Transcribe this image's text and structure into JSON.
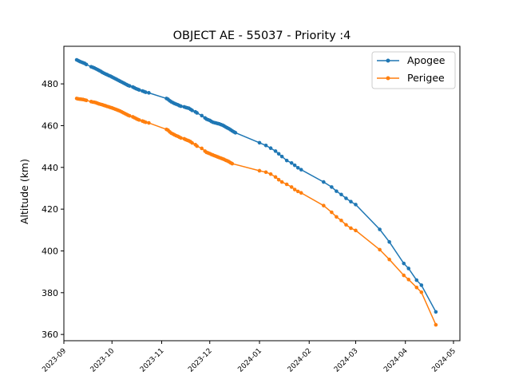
{
  "chart_data": {
    "type": "line",
    "title": "OBJECT AE - 55037 - Priority :4",
    "xlabel": "",
    "ylabel": "Altitude (km)",
    "ylim": [
      357,
      498
    ],
    "xlim": [
      "2023-09-01",
      "2024-05-05"
    ],
    "x_ticks": [
      "2023-09",
      "2023-10",
      "2023-11",
      "2023-12",
      "2024-01",
      "2024-02",
      "2024-03",
      "2024-04",
      "2024-05"
    ],
    "y_ticks": [
      360,
      380,
      400,
      420,
      440,
      460,
      480
    ],
    "legend_position": "top-right",
    "grid": false,
    "series": [
      {
        "name": "Apogee",
        "color": "#1f77b4",
        "points": [
          [
            "2023-09-09",
            491.5
          ],
          [
            "2023-09-10",
            491.1
          ],
          [
            "2023-09-11",
            490.7
          ],
          [
            "2023-09-12",
            490.4
          ],
          [
            "2023-09-13",
            490.1
          ],
          [
            "2023-09-14",
            489.8
          ],
          [
            "2023-09-15",
            489.3
          ],
          [
            "2023-09-18",
            488.2
          ],
          [
            "2023-09-19",
            487.9
          ],
          [
            "2023-09-20",
            487.6
          ],
          [
            "2023-09-21",
            487.2
          ],
          [
            "2023-09-22",
            486.8
          ],
          [
            "2023-09-23",
            486.4
          ],
          [
            "2023-09-24",
            486.0
          ],
          [
            "2023-09-25",
            485.5
          ],
          [
            "2023-09-26",
            485.1
          ],
          [
            "2023-09-27",
            484.7
          ],
          [
            "2023-09-28",
            484.4
          ],
          [
            "2023-09-29",
            484.0
          ],
          [
            "2023-09-30",
            483.7
          ],
          [
            "2023-10-01",
            483.3
          ],
          [
            "2023-10-02",
            482.9
          ],
          [
            "2023-10-03",
            482.5
          ],
          [
            "2023-10-04",
            482.1
          ],
          [
            "2023-10-05",
            481.7
          ],
          [
            "2023-10-06",
            481.3
          ],
          [
            "2023-10-07",
            480.9
          ],
          [
            "2023-10-08",
            480.5
          ],
          [
            "2023-10-09",
            480.1
          ],
          [
            "2023-10-10",
            479.7
          ],
          [
            "2023-10-11",
            479.3
          ],
          [
            "2023-10-12",
            479.0
          ],
          [
            "2023-10-14",
            478.5
          ],
          [
            "2023-10-15",
            478.1
          ],
          [
            "2023-10-16",
            477.7
          ],
          [
            "2023-10-17",
            477.4
          ],
          [
            "2023-10-18",
            477.1
          ],
          [
            "2023-10-20",
            476.6
          ],
          [
            "2023-10-21",
            476.3
          ],
          [
            "2023-10-22",
            476.0
          ],
          [
            "2023-10-24",
            475.7
          ],
          [
            "2023-11-04",
            473.0
          ],
          [
            "2023-11-05",
            472.6
          ],
          [
            "2023-11-06",
            471.9
          ],
          [
            "2023-11-07",
            471.4
          ],
          [
            "2023-11-08",
            471.0
          ],
          [
            "2023-11-09",
            470.6
          ],
          [
            "2023-11-10",
            470.3
          ],
          [
            "2023-11-11",
            470.0
          ],
          [
            "2023-11-12",
            469.6
          ],
          [
            "2023-11-13",
            469.3
          ],
          [
            "2023-11-15",
            469.0
          ],
          [
            "2023-11-16",
            468.7
          ],
          [
            "2023-11-17",
            468.5
          ],
          [
            "2023-11-18",
            468.3
          ],
          [
            "2023-11-19",
            467.8
          ],
          [
            "2023-11-20",
            467.3
          ],
          [
            "2023-11-22",
            466.6
          ],
          [
            "2023-11-23",
            466.1
          ],
          [
            "2023-11-26",
            464.8
          ],
          [
            "2023-11-28",
            463.7
          ],
          [
            "2023-11-29",
            463.1
          ],
          [
            "2023-11-30",
            462.8
          ],
          [
            "2023-12-01",
            462.5
          ],
          [
            "2023-12-02",
            462.0
          ],
          [
            "2023-12-03",
            461.6
          ],
          [
            "2023-12-04",
            461.4
          ],
          [
            "2023-12-05",
            461.2
          ],
          [
            "2023-12-06",
            461.0
          ],
          [
            "2023-12-07",
            460.8
          ],
          [
            "2023-12-08",
            460.5
          ],
          [
            "2023-12-09",
            460.2
          ],
          [
            "2023-12-10",
            459.8
          ],
          [
            "2023-12-11",
            459.3
          ],
          [
            "2023-12-12",
            458.9
          ],
          [
            "2023-12-13",
            458.5
          ],
          [
            "2023-12-14",
            458.0
          ],
          [
            "2023-12-15",
            457.5
          ],
          [
            "2023-12-16",
            457.0
          ],
          [
            "2023-12-17",
            456.6
          ],
          [
            "2024-01-01",
            451.8
          ],
          [
            "2024-01-05",
            450.5
          ],
          [
            "2024-01-08",
            449.2
          ],
          [
            "2024-01-11",
            447.8
          ],
          [
            "2024-01-13",
            446.5
          ],
          [
            "2024-01-15",
            445.2
          ],
          [
            "2024-01-18",
            443.3
          ],
          [
            "2024-01-21",
            442.1
          ],
          [
            "2024-01-23",
            441.0
          ],
          [
            "2024-01-25",
            439.8
          ],
          [
            "2024-01-27",
            438.9
          ],
          [
            "2024-02-10",
            433.0
          ],
          [
            "2024-02-15",
            430.6
          ],
          [
            "2024-02-18",
            428.6
          ],
          [
            "2024-02-21",
            427.0
          ],
          [
            "2024-02-24",
            425.2
          ],
          [
            "2024-02-27",
            423.6
          ],
          [
            "2024-03-01",
            422.2
          ],
          [
            "2024-03-16",
            410.3
          ],
          [
            "2024-03-22",
            404.3
          ],
          [
            "2024-03-31",
            394.0
          ],
          [
            "2024-04-03",
            391.6
          ],
          [
            "2024-04-08",
            386.0
          ],
          [
            "2024-04-11",
            383.6
          ],
          [
            "2024-04-20",
            370.8
          ]
        ]
      },
      {
        "name": "Perigee",
        "color": "#ff7f0e",
        "points": [
          [
            "2023-09-09",
            473.0
          ],
          [
            "2023-09-10",
            472.8
          ],
          [
            "2023-09-11",
            472.7
          ],
          [
            "2023-09-12",
            472.6
          ],
          [
            "2023-09-13",
            472.5
          ],
          [
            "2023-09-14",
            472.3
          ],
          [
            "2023-09-15",
            472.1
          ],
          [
            "2023-09-18",
            471.5
          ],
          [
            "2023-09-19",
            471.3
          ],
          [
            "2023-09-20",
            471.2
          ],
          [
            "2023-09-21",
            471.0
          ],
          [
            "2023-09-22",
            470.7
          ],
          [
            "2023-09-23",
            470.4
          ],
          [
            "2023-09-24",
            470.2
          ],
          [
            "2023-09-25",
            470.0
          ],
          [
            "2023-09-26",
            469.7
          ],
          [
            "2023-09-27",
            469.5
          ],
          [
            "2023-09-28",
            469.2
          ],
          [
            "2023-09-29",
            469.0
          ],
          [
            "2023-09-30",
            468.7
          ],
          [
            "2023-10-01",
            468.5
          ],
          [
            "2023-10-02",
            468.2
          ],
          [
            "2023-10-03",
            467.9
          ],
          [
            "2023-10-04",
            467.6
          ],
          [
            "2023-10-05",
            467.3
          ],
          [
            "2023-10-06",
            467.0
          ],
          [
            "2023-10-07",
            466.6
          ],
          [
            "2023-10-08",
            466.2
          ],
          [
            "2023-10-09",
            465.8
          ],
          [
            "2023-10-10",
            465.4
          ],
          [
            "2023-10-11",
            465.0
          ],
          [
            "2023-10-12",
            464.7
          ],
          [
            "2023-10-14",
            464.2
          ],
          [
            "2023-10-15",
            463.8
          ],
          [
            "2023-10-16",
            463.4
          ],
          [
            "2023-10-17",
            463.0
          ],
          [
            "2023-10-18",
            462.7
          ],
          [
            "2023-10-20",
            462.2
          ],
          [
            "2023-10-21",
            461.9
          ],
          [
            "2023-10-22",
            461.6
          ],
          [
            "2023-10-24",
            461.3
          ],
          [
            "2023-11-04",
            458.2
          ],
          [
            "2023-11-05",
            457.8
          ],
          [
            "2023-11-06",
            457.0
          ],
          [
            "2023-11-07",
            456.4
          ],
          [
            "2023-11-08",
            456.0
          ],
          [
            "2023-11-09",
            455.6
          ],
          [
            "2023-11-10",
            455.2
          ],
          [
            "2023-11-11",
            454.9
          ],
          [
            "2023-11-12",
            454.5
          ],
          [
            "2023-11-13",
            454.1
          ],
          [
            "2023-11-15",
            453.7
          ],
          [
            "2023-11-16",
            453.3
          ],
          [
            "2023-11-17",
            453.0
          ],
          [
            "2023-11-18",
            452.7
          ],
          [
            "2023-11-19",
            452.3
          ],
          [
            "2023-11-20",
            451.7
          ],
          [
            "2023-11-22",
            450.9
          ],
          [
            "2023-11-23",
            450.2
          ],
          [
            "2023-11-26",
            449.1
          ],
          [
            "2023-11-28",
            447.8
          ],
          [
            "2023-11-29",
            447.2
          ],
          [
            "2023-11-30",
            446.9
          ],
          [
            "2023-12-01",
            446.6
          ],
          [
            "2023-12-02",
            446.2
          ],
          [
            "2023-12-03",
            445.9
          ],
          [
            "2023-12-04",
            445.6
          ],
          [
            "2023-12-05",
            445.3
          ],
          [
            "2023-12-06",
            445.0
          ],
          [
            "2023-12-07",
            444.7
          ],
          [
            "2023-12-08",
            444.4
          ],
          [
            "2023-12-09",
            444.1
          ],
          [
            "2023-12-10",
            443.8
          ],
          [
            "2023-12-11",
            443.4
          ],
          [
            "2023-12-12",
            443.1
          ],
          [
            "2023-12-13",
            442.7
          ],
          [
            "2023-12-14",
            442.2
          ],
          [
            "2023-12-15",
            441.8
          ],
          [
            "2024-01-01",
            438.4
          ],
          [
            "2024-01-05",
            437.7
          ],
          [
            "2024-01-08",
            436.8
          ],
          [
            "2024-01-11",
            435.4
          ],
          [
            "2024-01-13",
            434.1
          ],
          [
            "2024-01-15",
            433.0
          ],
          [
            "2024-01-18",
            431.9
          ],
          [
            "2024-01-21",
            430.6
          ],
          [
            "2024-01-23",
            429.4
          ],
          [
            "2024-01-25",
            428.5
          ],
          [
            "2024-01-27",
            427.8
          ],
          [
            "2024-02-10",
            421.7
          ],
          [
            "2024-02-15",
            418.5
          ],
          [
            "2024-02-18",
            416.3
          ],
          [
            "2024-02-21",
            414.6
          ],
          [
            "2024-02-24",
            412.5
          ],
          [
            "2024-02-27",
            410.9
          ],
          [
            "2024-03-01",
            409.8
          ],
          [
            "2024-03-16",
            400.6
          ],
          [
            "2024-03-22",
            395.9
          ],
          [
            "2024-03-31",
            388.3
          ],
          [
            "2024-04-03",
            386.3
          ],
          [
            "2024-04-08",
            382.5
          ],
          [
            "2024-04-11",
            380.2
          ],
          [
            "2024-04-20",
            364.6
          ]
        ]
      }
    ]
  }
}
